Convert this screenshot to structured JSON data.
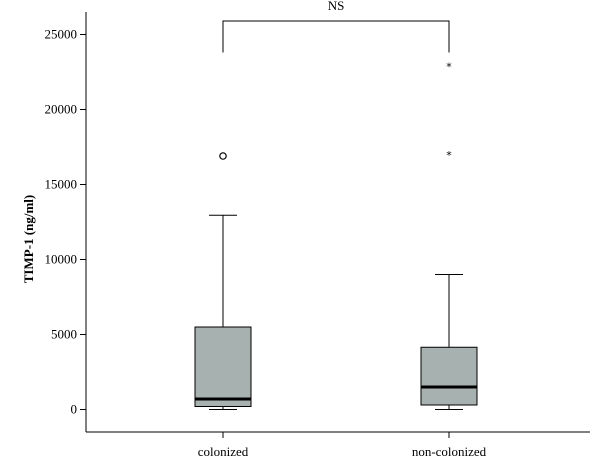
{
  "chart_data": {
    "type": "boxplot",
    "ylabel": "TIMP-1 (ng/ml)",
    "xlabel": "",
    "ylim": [
      -1500,
      26500
    ],
    "yticks": [
      0,
      5000,
      10000,
      15000,
      20000,
      25000
    ],
    "categories": [
      "colonized",
      "non-colonized"
    ],
    "boxes": [
      {
        "category": "colonized",
        "whisker_low": 0,
        "q1": 200,
        "median": 700,
        "q3": 5500,
        "whisker_high": 12950,
        "outliers": [
          16900
        ],
        "extremes": []
      },
      {
        "category": "non-colonized",
        "whisker_low": 0,
        "q1": 300,
        "median": 1500,
        "q3": 4150,
        "whisker_high": 9000,
        "outliers": [],
        "extremes": [
          23000,
          17100
        ]
      }
    ],
    "annotation": {
      "text": "NS",
      "between": [
        "colonized",
        "non-colonized"
      ],
      "level": 25900,
      "leg_bottom": 23800
    },
    "grid": false,
    "legend": "none",
    "colors": {
      "box_fill": "#a7b2b0"
    }
  }
}
